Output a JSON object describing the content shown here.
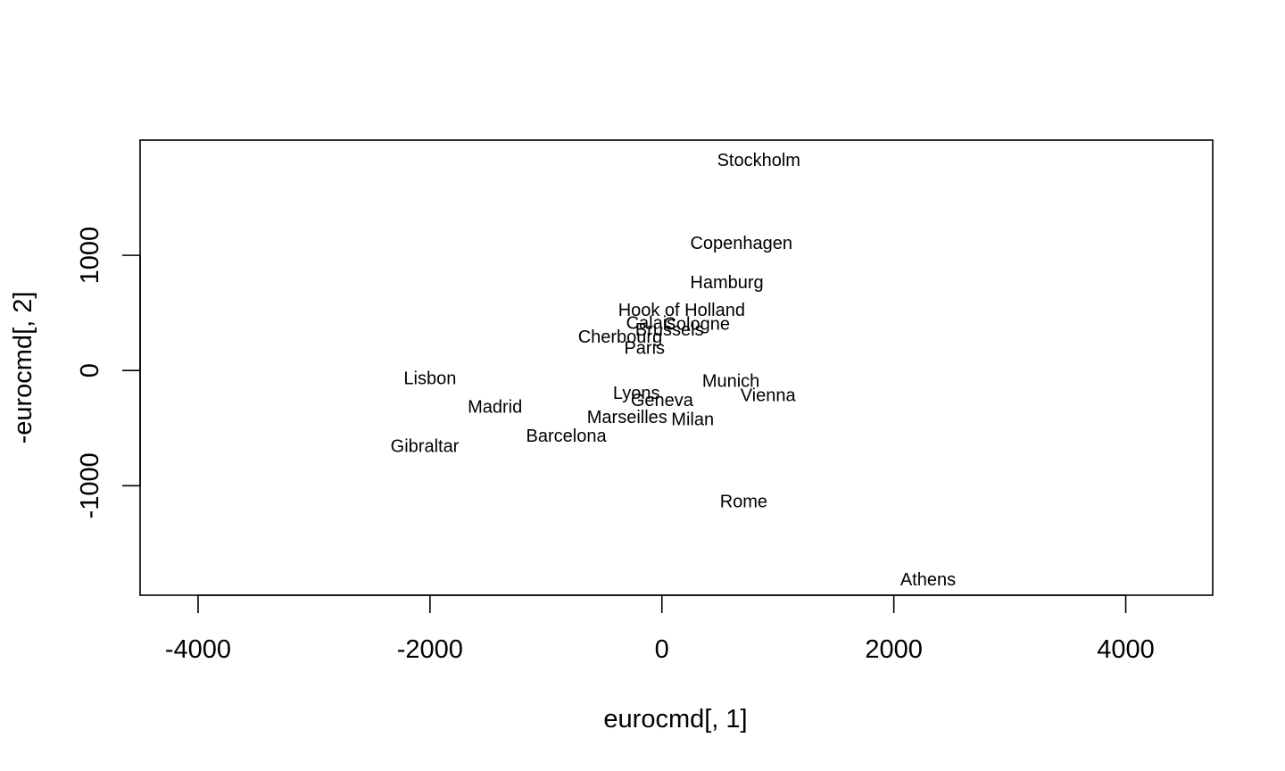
{
  "chart_data": {
    "type": "scatter",
    "title": "",
    "xlabel": "eurocmd[, 1]",
    "ylabel": "-eurocmd[, 2]",
    "xlim": [
      -4500,
      4750
    ],
    "ylim": [
      -1950,
      2000
    ],
    "xticks": [
      -4000,
      -2000,
      0,
      2000,
      4000
    ],
    "yticks": [
      -1000,
      0,
      1000
    ],
    "marker": "text",
    "points": [
      {
        "label": "Stockholm",
        "x": 835,
        "y": 1820
      },
      {
        "label": "Copenhagen",
        "x": 685,
        "y": 1100
      },
      {
        "label": "Hamburg",
        "x": 560,
        "y": 760
      },
      {
        "label": "Hook of Holland",
        "x": 170,
        "y": 520
      },
      {
        "label": "Calais",
        "x": -95,
        "y": 410
      },
      {
        "label": "Cologne",
        "x": 300,
        "y": 400
      },
      {
        "label": "Brussels",
        "x": 65,
        "y": 350
      },
      {
        "label": "Cherbourg",
        "x": -360,
        "y": 290
      },
      {
        "label": "Paris",
        "x": -150,
        "y": 190
      },
      {
        "label": "Lisbon",
        "x": -2000,
        "y": -70
      },
      {
        "label": "Munich",
        "x": 595,
        "y": -95
      },
      {
        "label": "Vienna",
        "x": 915,
        "y": -220
      },
      {
        "label": "Lyons",
        "x": -220,
        "y": -200
      },
      {
        "label": "Geneva",
        "x": 1,
        "y": -260
      },
      {
        "label": "Madrid",
        "x": -1440,
        "y": -320
      },
      {
        "label": "Marseilles",
        "x": -300,
        "y": -410
      },
      {
        "label": "Milan",
        "x": 265,
        "y": -430
      },
      {
        "label": "Barcelona",
        "x": -825,
        "y": -570
      },
      {
        "label": "Gibraltar",
        "x": -2045,
        "y": -660
      },
      {
        "label": "Rome",
        "x": 705,
        "y": -1140
      },
      {
        "label": "Athens",
        "x": 2295,
        "y": -1820
      }
    ]
  }
}
